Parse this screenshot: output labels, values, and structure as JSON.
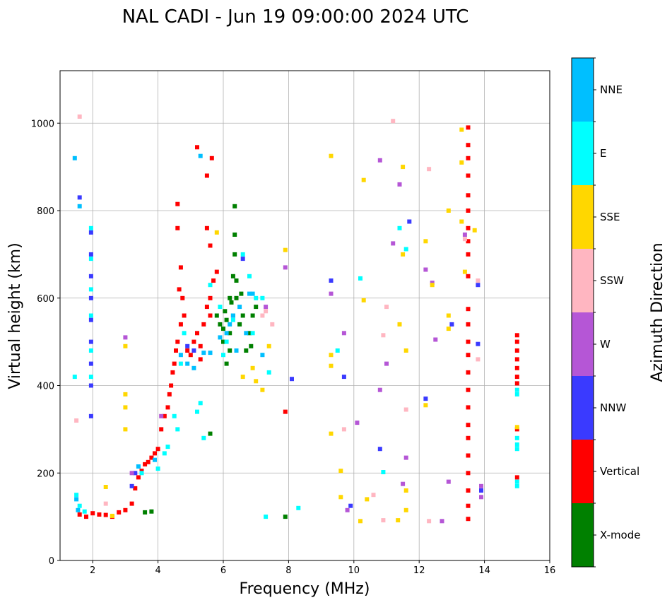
{
  "chart_data": {
    "type": "scatter",
    "title": "NAL CADI - Jun 19 09:00:00 2024 UTC",
    "xlabel": "Frequency (MHz)",
    "ylabel": "Virtual height (km)",
    "xlim": [
      1,
      16
    ],
    "ylim": [
      0,
      1120
    ],
    "xticks": [
      2,
      4,
      6,
      8,
      10,
      12,
      14,
      16
    ],
    "yticks": [
      0,
      200,
      400,
      600,
      800,
      1000
    ],
    "grid": true,
    "colorbar": {
      "title": "Azimuth Direction",
      "categories": [
        {
          "label": "X-mode",
          "color": "#008000"
        },
        {
          "label": "Vertical",
          "color": "#ff0000"
        },
        {
          "label": "NNW",
          "color": "#3a3aff"
        },
        {
          "label": "W",
          "color": "#b556d6"
        },
        {
          "label": "SSW",
          "color": "#ffb6c1"
        },
        {
          "label": "SSE",
          "color": "#ffd700"
        },
        {
          "label": "E",
          "color": "#00ffff"
        },
        {
          "label": "NNE",
          "color": "#00bfff"
        }
      ]
    },
    "series": [
      {
        "name": "X-mode",
        "points": [
          [
            3.6,
            110
          ],
          [
            3.8,
            112
          ],
          [
            5.6,
            290
          ],
          [
            5.9,
            540
          ],
          [
            6.0,
            530
          ],
          [
            6.1,
            550
          ],
          [
            6.2,
            520
          ],
          [
            6.3,
            560
          ],
          [
            6.3,
            650
          ],
          [
            6.4,
            640
          ],
          [
            6.0,
            500
          ],
          [
            6.2,
            480
          ],
          [
            6.4,
            600
          ],
          [
            6.5,
            540
          ],
          [
            6.6,
            560
          ],
          [
            6.7,
            480
          ],
          [
            6.8,
            520
          ],
          [
            6.9,
            560
          ],
          [
            7.0,
            580
          ],
          [
            6.35,
            810
          ],
          [
            6.35,
            745
          ],
          [
            6.35,
            700
          ],
          [
            6.2,
            600
          ],
          [
            6.1,
            450
          ],
          [
            7.9,
            100
          ],
          [
            5.8,
            560
          ],
          [
            6.05,
            570
          ],
          [
            6.25,
            590
          ],
          [
            6.55,
            610
          ],
          [
            6.85,
            490
          ]
        ]
      },
      {
        "name": "Vertical",
        "points": [
          [
            1.6,
            105
          ],
          [
            1.8,
            100
          ],
          [
            2.0,
            108
          ],
          [
            2.2,
            105
          ],
          [
            2.4,
            104
          ],
          [
            2.6,
            100
          ],
          [
            2.8,
            110
          ],
          [
            3.0,
            115
          ],
          [
            3.2,
            130
          ],
          [
            3.3,
            165
          ],
          [
            3.4,
            190
          ],
          [
            3.5,
            205
          ],
          [
            3.6,
            220
          ],
          [
            3.7,
            225
          ],
          [
            3.8,
            235
          ],
          [
            3.9,
            245
          ],
          [
            4.0,
            255
          ],
          [
            4.1,
            300
          ],
          [
            4.2,
            330
          ],
          [
            4.3,
            350
          ],
          [
            4.35,
            380
          ],
          [
            4.4,
            400
          ],
          [
            4.45,
            430
          ],
          [
            4.5,
            450
          ],
          [
            4.55,
            480
          ],
          [
            4.6,
            500
          ],
          [
            4.7,
            540
          ],
          [
            4.8,
            560
          ],
          [
            4.9,
            480
          ],
          [
            5.0,
            470
          ],
          [
            5.1,
            500
          ],
          [
            5.2,
            520
          ],
          [
            5.3,
            490
          ],
          [
            5.4,
            540
          ],
          [
            5.5,
            580
          ],
          [
            5.6,
            600
          ],
          [
            5.7,
            640
          ],
          [
            5.8,
            660
          ],
          [
            4.6,
            760
          ],
          [
            4.7,
            670
          ],
          [
            4.65,
            620
          ],
          [
            4.75,
            600
          ],
          [
            5.3,
            460
          ],
          [
            5.5,
            760
          ],
          [
            5.6,
            720
          ],
          [
            5.5,
            880
          ],
          [
            5.65,
            920
          ],
          [
            4.6,
            815
          ],
          [
            5.6,
            560
          ],
          [
            5.2,
            945
          ],
          [
            7.9,
            340
          ],
          [
            13.5,
            95
          ],
          [
            13.5,
            125
          ],
          [
            13.5,
            160
          ],
          [
            13.5,
            200
          ],
          [
            13.5,
            240
          ],
          [
            13.5,
            280
          ],
          [
            13.5,
            310
          ],
          [
            13.5,
            350
          ],
          [
            13.5,
            390
          ],
          [
            13.5,
            430
          ],
          [
            13.5,
            470
          ],
          [
            13.5,
            500
          ],
          [
            13.5,
            540
          ],
          [
            13.5,
            575
          ],
          [
            13.5,
            650
          ],
          [
            13.5,
            700
          ],
          [
            13.5,
            730
          ],
          [
            13.5,
            760
          ],
          [
            13.5,
            800
          ],
          [
            13.5,
            835
          ],
          [
            13.5,
            880
          ],
          [
            13.5,
            920
          ],
          [
            13.5,
            950
          ],
          [
            13.5,
            990
          ],
          [
            15.0,
            190
          ],
          [
            15.0,
            300
          ],
          [
            15.0,
            405
          ],
          [
            15.0,
            420
          ],
          [
            15.0,
            440
          ],
          [
            15.0,
            460
          ],
          [
            15.0,
            480
          ],
          [
            15.0,
            500
          ],
          [
            15.0,
            515
          ]
        ]
      },
      {
        "name": "NNW",
        "points": [
          [
            1.95,
            750
          ],
          [
            1.95,
            700
          ],
          [
            1.95,
            650
          ],
          [
            1.95,
            600
          ],
          [
            1.95,
            550
          ],
          [
            1.95,
            500
          ],
          [
            1.95,
            450
          ],
          [
            1.95,
            400
          ],
          [
            1.95,
            330
          ],
          [
            1.6,
            830
          ],
          [
            3.2,
            170
          ],
          [
            3.3,
            200
          ],
          [
            4.9,
            490
          ],
          [
            5.1,
            480
          ],
          [
            6.6,
            690
          ],
          [
            8.1,
            415
          ],
          [
            9.3,
            640
          ],
          [
            9.7,
            420
          ],
          [
            9.9,
            125
          ],
          [
            10.8,
            255
          ],
          [
            11.7,
            775
          ],
          [
            12.2,
            370
          ],
          [
            13.0,
            540
          ],
          [
            13.8,
            630
          ],
          [
            13.8,
            495
          ],
          [
            13.9,
            160
          ]
        ]
      },
      {
        "name": "W",
        "points": [
          [
            3.0,
            510
          ],
          [
            3.2,
            200
          ],
          [
            4.1,
            330
          ],
          [
            7.3,
            580
          ],
          [
            7.9,
            670
          ],
          [
            9.3,
            610
          ],
          [
            9.7,
            520
          ],
          [
            9.8,
            115
          ],
          [
            10.1,
            315
          ],
          [
            10.8,
            390
          ],
          [
            11.0,
            450
          ],
          [
            11.2,
            725
          ],
          [
            11.4,
            860
          ],
          [
            11.5,
            175
          ],
          [
            11.6,
            235
          ],
          [
            12.2,
            665
          ],
          [
            12.4,
            635
          ],
          [
            12.5,
            505
          ],
          [
            12.9,
            180
          ],
          [
            13.4,
            745
          ],
          [
            13.9,
            145
          ],
          [
            13.9,
            170
          ],
          [
            12.7,
            90
          ],
          [
            10.8,
            915
          ]
        ]
      },
      {
        "name": "SSW",
        "points": [
          [
            1.6,
            1015
          ],
          [
            1.5,
            320
          ],
          [
            2.4,
            130
          ],
          [
            7.2,
            560
          ],
          [
            7.3,
            570
          ],
          [
            7.5,
            540
          ],
          [
            9.7,
            300
          ],
          [
            10.6,
            150
          ],
          [
            10.9,
            515
          ],
          [
            11.0,
            580
          ],
          [
            11.2,
            1005
          ],
          [
            11.6,
            345
          ],
          [
            12.3,
            895
          ],
          [
            13.4,
            735
          ],
          [
            13.8,
            640
          ],
          [
            13.8,
            460
          ],
          [
            12.3,
            90
          ],
          [
            10.9,
            92
          ]
        ]
      },
      {
        "name": "SSE",
        "points": [
          [
            2.4,
            168
          ],
          [
            2.6,
            102
          ],
          [
            3.0,
            350
          ],
          [
            3.0,
            380
          ],
          [
            3.0,
            300
          ],
          [
            3.0,
            490
          ],
          [
            5.8,
            750
          ],
          [
            6.6,
            420
          ],
          [
            6.9,
            440
          ],
          [
            7.0,
            410
          ],
          [
            7.2,
            390
          ],
          [
            7.4,
            490
          ],
          [
            7.9,
            710
          ],
          [
            9.3,
            470
          ],
          [
            9.3,
            445
          ],
          [
            9.3,
            290
          ],
          [
            9.3,
            925
          ],
          [
            9.6,
            205
          ],
          [
            9.6,
            145
          ],
          [
            10.2,
            90
          ],
          [
            10.3,
            595
          ],
          [
            10.3,
            870
          ],
          [
            11.4,
            540
          ],
          [
            11.5,
            900
          ],
          [
            11.5,
            700
          ],
          [
            11.6,
            480
          ],
          [
            11.6,
            115
          ],
          [
            11.6,
            160
          ],
          [
            12.2,
            355
          ],
          [
            12.2,
            730
          ],
          [
            12.4,
            630
          ],
          [
            12.9,
            800
          ],
          [
            12.9,
            560
          ],
          [
            12.9,
            530
          ],
          [
            13.3,
            775
          ],
          [
            13.3,
            910
          ],
          [
            13.3,
            985
          ],
          [
            13.4,
            660
          ],
          [
            13.7,
            755
          ],
          [
            15.0,
            305
          ],
          [
            10.4,
            140
          ],
          [
            11.35,
            92
          ]
        ]
      },
      {
        "name": "E",
        "points": [
          [
            1.45,
            420
          ],
          [
            1.5,
            150
          ],
          [
            1.6,
            125
          ],
          [
            1.75,
            112
          ],
          [
            1.95,
            760
          ],
          [
            1.95,
            690
          ],
          [
            1.95,
            620
          ],
          [
            1.95,
            560
          ],
          [
            1.95,
            480
          ],
          [
            1.95,
            420
          ],
          [
            3.5,
            200
          ],
          [
            4.0,
            210
          ],
          [
            4.3,
            260
          ],
          [
            4.5,
            330
          ],
          [
            4.6,
            300
          ],
          [
            4.8,
            520
          ],
          [
            5.2,
            340
          ],
          [
            5.3,
            360
          ],
          [
            5.6,
            630
          ],
          [
            5.9,
            580
          ],
          [
            6.1,
            500
          ],
          [
            6.3,
            550
          ],
          [
            6.6,
            700
          ],
          [
            6.8,
            650
          ],
          [
            7.0,
            600
          ],
          [
            7.2,
            600
          ],
          [
            7.4,
            430
          ],
          [
            8.3,
            120
          ],
          [
            9.5,
            480
          ],
          [
            10.2,
            645
          ],
          [
            10.9,
            202
          ],
          [
            11.4,
            760
          ],
          [
            11.6,
            712
          ],
          [
            15.0,
            170
          ],
          [
            15.0,
            180
          ],
          [
            15.0,
            255
          ],
          [
            15.0,
            265
          ],
          [
            15.0,
            280
          ],
          [
            15.0,
            380
          ],
          [
            15.0,
            390
          ],
          [
            5.4,
            280
          ],
          [
            4.2,
            245
          ],
          [
            4.7,
            450
          ],
          [
            6.0,
            470
          ],
          [
            7.3,
            100
          ],
          [
            6.9,
            520
          ]
        ]
      },
      {
        "name": "NNE",
        "points": [
          [
            1.45,
            920
          ],
          [
            1.5,
            140
          ],
          [
            1.55,
            115
          ],
          [
            1.6,
            810
          ],
          [
            5.3,
            925
          ],
          [
            5.4,
            475
          ],
          [
            5.6,
            475
          ],
          [
            5.9,
            510
          ],
          [
            6.1,
            520
          ],
          [
            6.2,
            540
          ],
          [
            6.3,
            560
          ],
          [
            6.5,
            580
          ],
          [
            6.7,
            520
          ],
          [
            6.9,
            610
          ],
          [
            7.2,
            470
          ],
          [
            4.7,
            470
          ],
          [
            4.9,
            450
          ],
          [
            5.1,
            440
          ],
          [
            3.9,
            230
          ],
          [
            3.4,
            215
          ],
          [
            6.4,
            480
          ],
          [
            6.8,
            610
          ]
        ]
      }
    ]
  }
}
